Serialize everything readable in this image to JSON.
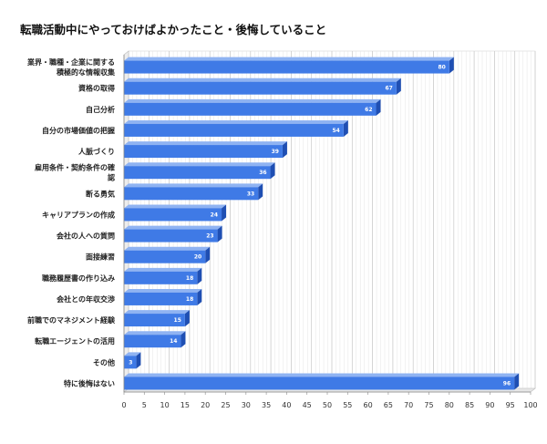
{
  "chart_data": {
    "type": "bar",
    "orientation": "horizontal",
    "title": "転職活動中にやっておけばよかったこと・後悔していること",
    "categories": [
      "業界・職種・企業に関する\n積極的な情報収集",
      "資格の取得",
      "自己分析",
      "自分の市場価値の把握",
      "人脈づくり",
      "雇用条件・契約条件の確\n認",
      "断る勇気",
      "キャリアプランの作成",
      "会社の人への質問",
      "面接練習",
      "職務履歴書の作り込み",
      "会社との年収交渉",
      "前職でのマネジメント経験",
      "転職エージェントの活用",
      "その他",
      "特に後悔はない"
    ],
    "values": [
      80,
      67,
      62,
      54,
      39,
      36,
      33,
      24,
      23,
      20,
      18,
      18,
      15,
      14,
      3,
      96
    ],
    "xlim": [
      0,
      100
    ],
    "x_ticks": [
      0,
      5,
      10,
      15,
      20,
      25,
      30,
      35,
      40,
      45,
      50,
      55,
      60,
      65,
      70,
      75,
      80,
      85,
      90,
      95,
      100
    ],
    "grid": true,
    "bar_color": "#3f7ae6",
    "bar_top_color": "#8fb3f2",
    "bar_side_color": "#1f4fb3"
  }
}
